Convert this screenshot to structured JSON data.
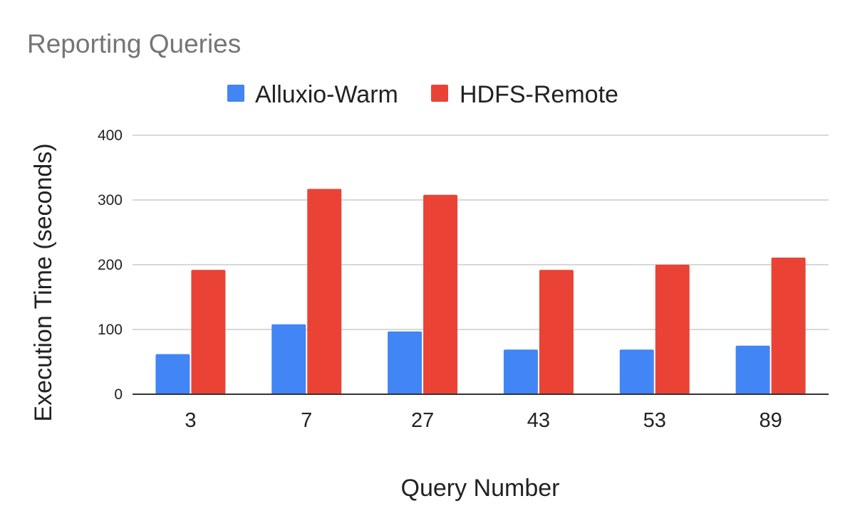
{
  "chart_data": {
    "type": "bar",
    "title": "Reporting Queries",
    "xlabel": "Query Number",
    "ylabel": "Execution Time (seconds)",
    "categories": [
      "3",
      "7",
      "27",
      "43",
      "53",
      "89"
    ],
    "series": [
      {
        "name": "Alluxio-Warm",
        "color": "#4285f4",
        "values": [
          62,
          108,
          97,
          69,
          69,
          75
        ]
      },
      {
        "name": "HDFS-Remote",
        "color": "#ea4335",
        "values": [
          192,
          317,
          308,
          192,
          200,
          211
        ]
      }
    ],
    "ylim": [
      0,
      400
    ],
    "yticks": [
      0,
      100,
      200,
      300,
      400
    ],
    "grid": true,
    "legend_position": "top"
  }
}
